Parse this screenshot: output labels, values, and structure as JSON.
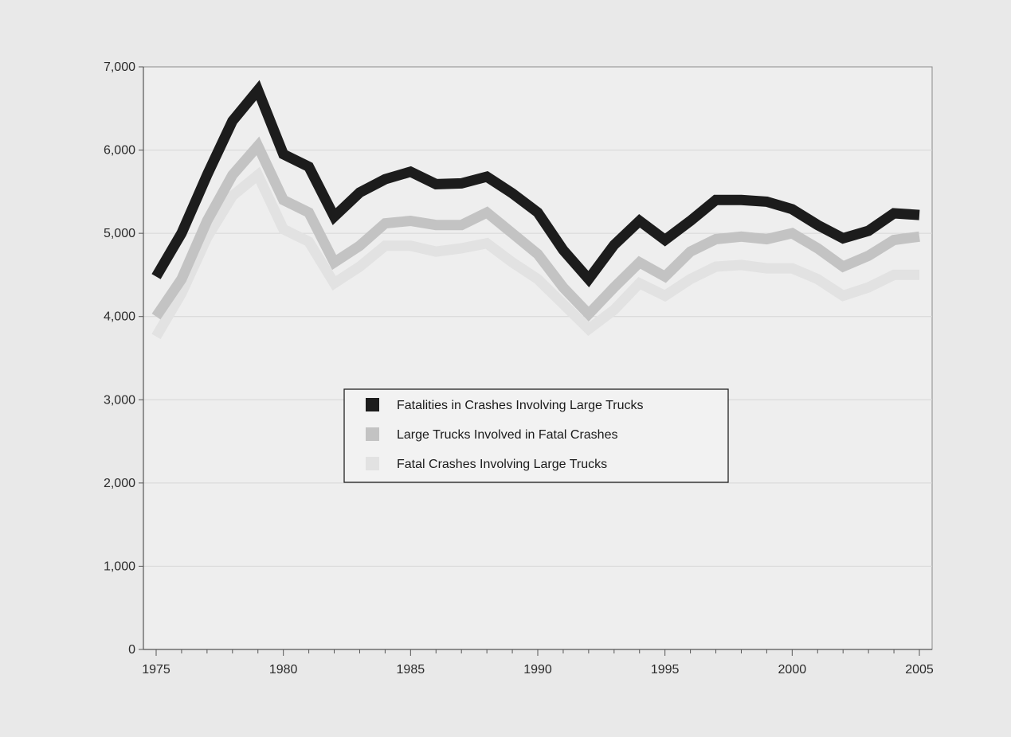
{
  "chart_data": {
    "type": "line",
    "title": "",
    "xlabel": "",
    "ylabel": "",
    "xlim": [
      1975,
      2005
    ],
    "ylim": [
      0,
      7000
    ],
    "grid": true,
    "legend_placement": "center",
    "x_ticks": [
      1975,
      1980,
      1985,
      1990,
      1995,
      2000,
      2005
    ],
    "x_tick_labels": [
      "1975",
      "1980",
      "1985",
      "1990",
      "1995",
      "2000",
      "2005"
    ],
    "y_ticks": [
      0,
      1000,
      2000,
      3000,
      4000,
      5000,
      6000,
      7000
    ],
    "y_tick_labels": [
      "0",
      "1,000",
      "2,000",
      "3,000",
      "4,000",
      "5,000",
      "6,000",
      "7,000"
    ],
    "x": [
      1975,
      1976,
      1977,
      1978,
      1979,
      1980,
      1981,
      1982,
      1983,
      1984,
      1985,
      1986,
      1987,
      1988,
      1989,
      1990,
      1991,
      1992,
      1993,
      1994,
      1995,
      1996,
      1997,
      1998,
      1999,
      2000,
      2001,
      2002,
      2003,
      2004,
      2005
    ],
    "series": [
      {
        "name": "Fatal Crashes Involving Large Trucks",
        "color": "#e2e2e2",
        "values": [
          3760,
          4280,
          4950,
          5450,
          5700,
          5050,
          4900,
          4400,
          4600,
          4850,
          4850,
          4780,
          4820,
          4880,
          4650,
          4450,
          4150,
          3850,
          4080,
          4400,
          4250,
          4450,
          4600,
          4620,
          4580,
          4580,
          4450,
          4250,
          4350,
          4500,
          4500
        ]
      },
      {
        "name": "Large Trucks Involved in Fatal Crashes",
        "color": "#c3c3c3",
        "values": [
          4000,
          4450,
          5150,
          5700,
          6050,
          5400,
          5250,
          4650,
          4850,
          5120,
          5150,
          5100,
          5100,
          5250,
          5000,
          4750,
          4350,
          4030,
          4350,
          4650,
          4480,
          4780,
          4930,
          4960,
          4930,
          5000,
          4820,
          4600,
          4730,
          4920,
          4960
        ]
      },
      {
        "name": "Fatalities in Crashes Involving Large Trucks",
        "color": "#1c1c1c",
        "values": [
          4480,
          5000,
          5700,
          6350,
          6720,
          5950,
          5800,
          5200,
          5490,
          5650,
          5740,
          5590,
          5600,
          5680,
          5480,
          5250,
          4800,
          4450,
          4860,
          5150,
          4920,
          5150,
          5400,
          5400,
          5380,
          5290,
          5100,
          4940,
          5030,
          5240,
          5220
        ]
      }
    ],
    "legend_order": [
      2,
      1,
      0
    ]
  }
}
